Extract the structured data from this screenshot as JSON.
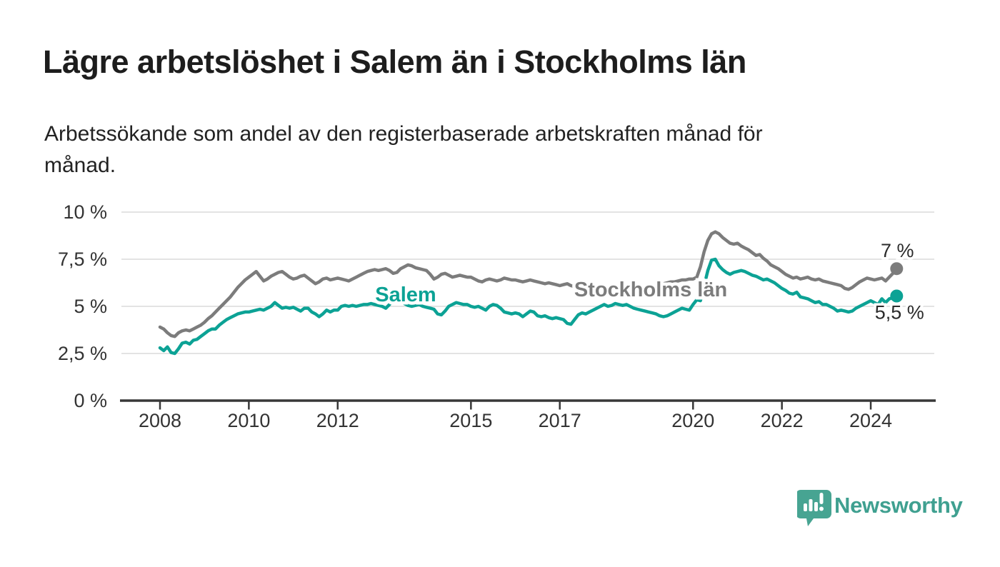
{
  "header": {
    "title": "Lägre arbetslöshet i Salem än i Stockholms län",
    "subtitle_line1": "Arbetssökande som andel av den registerbaserade arbetskraften månad för",
    "subtitle_line2": "månad."
  },
  "branding": {
    "logo_text": "Newsworthy",
    "logo_mark_icon": "speech-bubble-bar-chart-icon",
    "logo_color": "#3fa090"
  },
  "colors": {
    "salem": "#0ca295",
    "stockholm": "#7c7c7c",
    "axis": "#383838",
    "gridline": "#dadada",
    "tick_label": "#333333",
    "end_label": "#2b2b2b",
    "title": "#1d1d1d"
  },
  "chart_data": {
    "type": "line",
    "unit": "%",
    "frequency": "monthly",
    "x_start": "2008-01",
    "x_end": "2024-08",
    "ylim": [
      0,
      10
    ],
    "grid": true,
    "legend_position": "inline-labels",
    "y_ticks": {
      "values": [
        0,
        2.5,
        5,
        7.5,
        10
      ],
      "labels": [
        "0 %",
        "2,5 %",
        "5 %",
        "7,5 %",
        "10 %"
      ]
    },
    "x_ticks": {
      "years": [
        2008,
        2010,
        2012,
        2015,
        2017,
        2020,
        2022,
        2024
      ],
      "labels": [
        "2008",
        "2010",
        "2012",
        "2015",
        "2017",
        "2020",
        "2022",
        "2024"
      ]
    },
    "series": [
      {
        "name": "Stockholms län",
        "color": "#7c7c7c",
        "end_value": 7.0,
        "end_label": "7 %",
        "values": [
          3.9,
          3.8,
          3.6,
          3.45,
          3.4,
          3.6,
          3.7,
          3.75,
          3.7,
          3.8,
          3.9,
          4.0,
          4.15,
          4.35,
          4.5,
          4.7,
          4.9,
          5.1,
          5.3,
          5.5,
          5.75,
          6.0,
          6.2,
          6.4,
          6.55,
          6.7,
          6.85,
          6.6,
          6.35,
          6.45,
          6.6,
          6.7,
          6.8,
          6.85,
          6.7,
          6.55,
          6.45,
          6.5,
          6.6,
          6.65,
          6.5,
          6.35,
          6.2,
          6.3,
          6.45,
          6.5,
          6.4,
          6.45,
          6.5,
          6.45,
          6.4,
          6.35,
          6.45,
          6.55,
          6.65,
          6.75,
          6.85,
          6.9,
          6.95,
          6.9,
          6.95,
          7.0,
          6.9,
          6.75,
          6.8,
          7.0,
          7.1,
          7.2,
          7.15,
          7.05,
          7.0,
          6.95,
          6.9,
          6.7,
          6.45,
          6.55,
          6.7,
          6.75,
          6.65,
          6.55,
          6.6,
          6.65,
          6.6,
          6.55,
          6.55,
          6.45,
          6.35,
          6.3,
          6.4,
          6.45,
          6.4,
          6.35,
          6.4,
          6.5,
          6.45,
          6.4,
          6.4,
          6.35,
          6.3,
          6.35,
          6.4,
          6.35,
          6.3,
          6.25,
          6.2,
          6.25,
          6.2,
          6.15,
          6.1,
          6.15,
          6.2,
          6.1,
          6.05,
          6.1,
          6.15,
          6.1,
          6.05,
          6.0,
          6.05,
          6.1,
          6.05,
          6.0,
          5.95,
          5.9,
          5.95,
          6.0,
          6.05,
          6.0,
          5.95,
          5.9,
          5.95,
          6.0,
          6.0,
          6.05,
          6.1,
          6.15,
          6.2,
          6.25,
          6.3,
          6.3,
          6.35,
          6.4,
          6.4,
          6.45,
          6.45,
          6.55,
          7.1,
          7.9,
          8.5,
          8.85,
          8.95,
          8.85,
          8.65,
          8.5,
          8.35,
          8.3,
          8.35,
          8.2,
          8.1,
          8.0,
          7.85,
          7.7,
          7.75,
          7.55,
          7.4,
          7.2,
          7.1,
          7.0,
          6.85,
          6.7,
          6.6,
          6.5,
          6.55,
          6.45,
          6.5,
          6.55,
          6.45,
          6.4,
          6.45,
          6.35,
          6.3,
          6.25,
          6.2,
          6.15,
          6.1,
          5.95,
          5.9,
          6.0,
          6.15,
          6.3,
          6.4,
          6.5,
          6.45,
          6.4,
          6.45,
          6.5,
          6.35,
          6.55,
          6.75,
          7.0
        ]
      },
      {
        "name": "Salem",
        "color": "#0ca295",
        "end_value": 5.5,
        "end_label": "5,5 %",
        "values": [
          2.8,
          2.65,
          2.85,
          2.55,
          2.5,
          2.75,
          3.05,
          3.1,
          3.0,
          3.2,
          3.25,
          3.4,
          3.55,
          3.7,
          3.8,
          3.8,
          4.0,
          4.15,
          4.3,
          4.4,
          4.5,
          4.6,
          4.65,
          4.7,
          4.7,
          4.75,
          4.8,
          4.85,
          4.8,
          4.9,
          5.0,
          5.2,
          5.05,
          4.9,
          4.95,
          4.9,
          4.95,
          4.85,
          4.75,
          4.9,
          4.9,
          4.7,
          4.6,
          4.45,
          4.6,
          4.8,
          4.7,
          4.8,
          4.8,
          5.0,
          5.05,
          5.0,
          5.05,
          5.0,
          5.05,
          5.1,
          5.1,
          5.15,
          5.1,
          5.05,
          5.0,
          4.9,
          5.1,
          5.35,
          5.5,
          5.3,
          5.15,
          5.05,
          5.0,
          5.05,
          5.1,
          5.0,
          4.95,
          4.9,
          4.85,
          4.6,
          4.55,
          4.75,
          5.0,
          5.1,
          5.2,
          5.15,
          5.1,
          5.1,
          5.0,
          4.95,
          5.0,
          4.9,
          4.8,
          5.0,
          5.1,
          5.05,
          4.9,
          4.7,
          4.65,
          4.6,
          4.65,
          4.6,
          4.45,
          4.6,
          4.75,
          4.7,
          4.5,
          4.45,
          4.5,
          4.4,
          4.35,
          4.4,
          4.35,
          4.3,
          4.1,
          4.05,
          4.3,
          4.55,
          4.65,
          4.6,
          4.7,
          4.8,
          4.9,
          5.0,
          5.1,
          5.0,
          5.05,
          5.15,
          5.1,
          5.05,
          5.1,
          5.0,
          4.9,
          4.85,
          4.8,
          4.75,
          4.7,
          4.65,
          4.6,
          4.5,
          4.45,
          4.5,
          4.6,
          4.7,
          4.8,
          4.9,
          4.85,
          4.8,
          5.1,
          5.35,
          5.3,
          6.1,
          6.9,
          7.45,
          7.5,
          7.15,
          6.95,
          6.8,
          6.7,
          6.8,
          6.85,
          6.9,
          6.85,
          6.75,
          6.65,
          6.6,
          6.5,
          6.4,
          6.45,
          6.35,
          6.25,
          6.1,
          5.95,
          5.85,
          5.7,
          5.65,
          5.75,
          5.5,
          5.45,
          5.4,
          5.3,
          5.2,
          5.25,
          5.1,
          5.1,
          5.0,
          4.9,
          4.75,
          4.8,
          4.75,
          4.7,
          4.75,
          4.9,
          5.0,
          5.1,
          5.2,
          5.3,
          5.2,
          5.1,
          5.4,
          5.2,
          5.4,
          5.45,
          5.55
        ]
      }
    ]
  }
}
